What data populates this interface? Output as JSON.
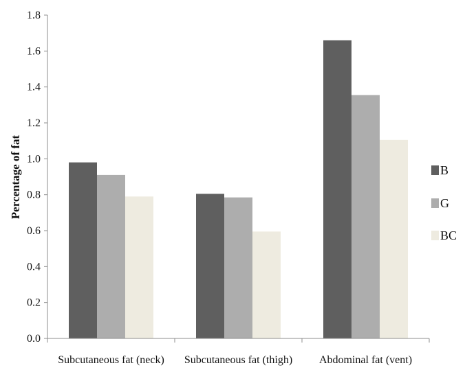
{
  "chart_data": {
    "type": "bar",
    "title": "",
    "xlabel": "",
    "ylabel": "Percentage of fat",
    "ylim": [
      0,
      1.8
    ],
    "yticks": [
      "0.0",
      "0.2",
      "0.4",
      "0.6",
      "0.8",
      "1.0",
      "1.2",
      "1.4",
      "1.6",
      "1.8"
    ],
    "grid": false,
    "legend_position": "right",
    "categories": [
      "Subcutaneous fat (neck)",
      "Subcutaneous fat (thigh)",
      "Abdominal fat (vent)"
    ],
    "series": [
      {
        "name": "B",
        "color": "#5f5f5f",
        "values": [
          0.98,
          0.805,
          1.66
        ]
      },
      {
        "name": "G",
        "color": "#adadad",
        "values": [
          0.91,
          0.785,
          1.355
        ]
      },
      {
        "name": "BC",
        "color": "#eeebe0",
        "values": [
          0.79,
          0.595,
          1.105
        ]
      }
    ]
  }
}
